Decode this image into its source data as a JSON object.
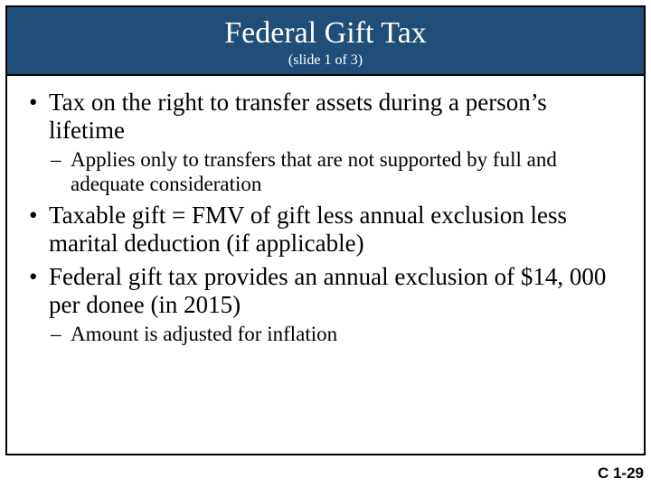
{
  "colors": {
    "title_bg": "#1f4e79",
    "title_fg": "#ffffff",
    "border": "#000000",
    "body_text": "#000000",
    "page_bg": "#ffffff"
  },
  "typography": {
    "title_fontsize_pt": 34,
    "subtitle_fontsize_pt": 16,
    "level1_fontsize_pt": 27,
    "level2_fontsize_pt": 23,
    "footer_fontsize_pt": 17,
    "body_font": "Times New Roman",
    "footer_font": "Arial"
  },
  "header": {
    "title": "Federal Gift Tax",
    "subtitle": "(slide 1 of 3)"
  },
  "bullets": {
    "b1": "Tax on the right to transfer assets during a person’s lifetime",
    "b1_sub1": "Applies only to transfers that are not supported by full and adequate consideration",
    "b2": "Taxable gift = FMV of gift less annual exclusion less marital deduction (if applicable)",
    "b3": "Federal gift tax provides an annual exclusion of $14, 000 per donee (in 2015)",
    "b3_sub1": "Amount is adjusted for inflation"
  },
  "footer": {
    "label": "C 1-29"
  }
}
